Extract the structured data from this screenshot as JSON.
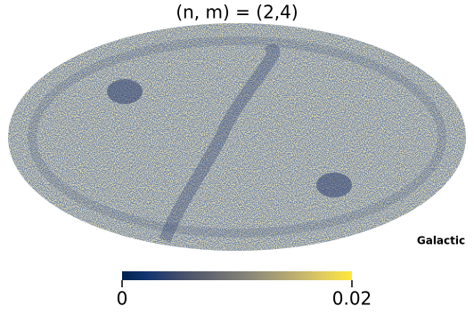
{
  "chart_data": {
    "type": "mollweide-map",
    "title": "(n, m) = (2,4)",
    "coord_label": "Galactic",
    "colorbar": {
      "clim": [
        0,
        0.02
      ],
      "ticks": [
        0,
        0.02
      ],
      "colormap": "cividis"
    }
  }
}
